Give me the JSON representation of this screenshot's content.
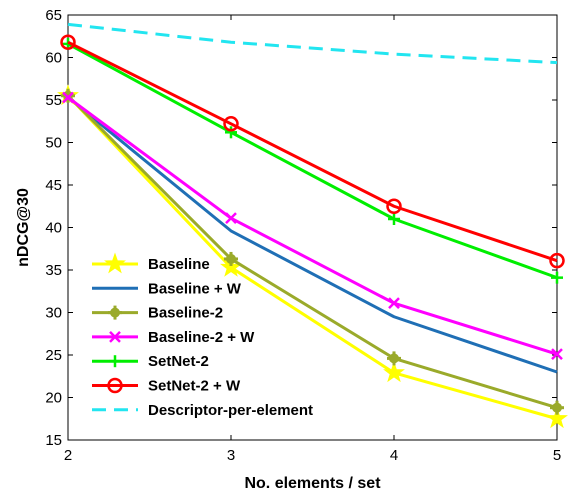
{
  "chart_data": {
    "type": "line",
    "xlabel": "No. elements / set",
    "ylabel": "nDCG@30",
    "x": [
      2,
      3,
      4,
      5
    ],
    "xlim": [
      2,
      5
    ],
    "ylim": [
      15,
      65
    ],
    "xticks": [
      2,
      3,
      4,
      5
    ],
    "yticks": [
      15,
      20,
      25,
      30,
      35,
      40,
      45,
      50,
      55,
      60,
      65
    ],
    "grid": false,
    "legend_position": "bottom-left",
    "series": [
      {
        "name": "Baseline",
        "values": [
          55.5,
          35.3,
          22.9,
          17.5
        ],
        "color": "#ffff00",
        "marker": "star",
        "dash": "solid"
      },
      {
        "name": "Baseline + W",
        "values": [
          55.3,
          39.6,
          29.5,
          23.0
        ],
        "color": "#1f6fb5",
        "marker": "none",
        "dash": "solid"
      },
      {
        "name": "Baseline-2",
        "values": [
          55.5,
          36.3,
          24.6,
          18.8
        ],
        "color": "#9aaa2a",
        "marker": "plus-filled",
        "dash": "solid"
      },
      {
        "name": "Baseline-2 + W",
        "values": [
          55.3,
          41.1,
          31.1,
          25.1
        ],
        "color": "#ff00ff",
        "marker": "x",
        "dash": "solid"
      },
      {
        "name": "SetNet-2",
        "values": [
          61.6,
          51.2,
          41.0,
          34.1
        ],
        "color": "#00ee00",
        "marker": "plus",
        "dash": "solid"
      },
      {
        "name": "SetNet-2 + W",
        "values": [
          61.8,
          52.2,
          42.5,
          36.1
        ],
        "color": "#ff0000",
        "marker": "circle",
        "dash": "solid"
      },
      {
        "name": "Descriptor-per-element",
        "values": [
          63.9,
          61.8,
          60.4,
          59.4
        ],
        "color": "#22e5f0",
        "marker": "none",
        "dash": "dashed"
      }
    ]
  }
}
